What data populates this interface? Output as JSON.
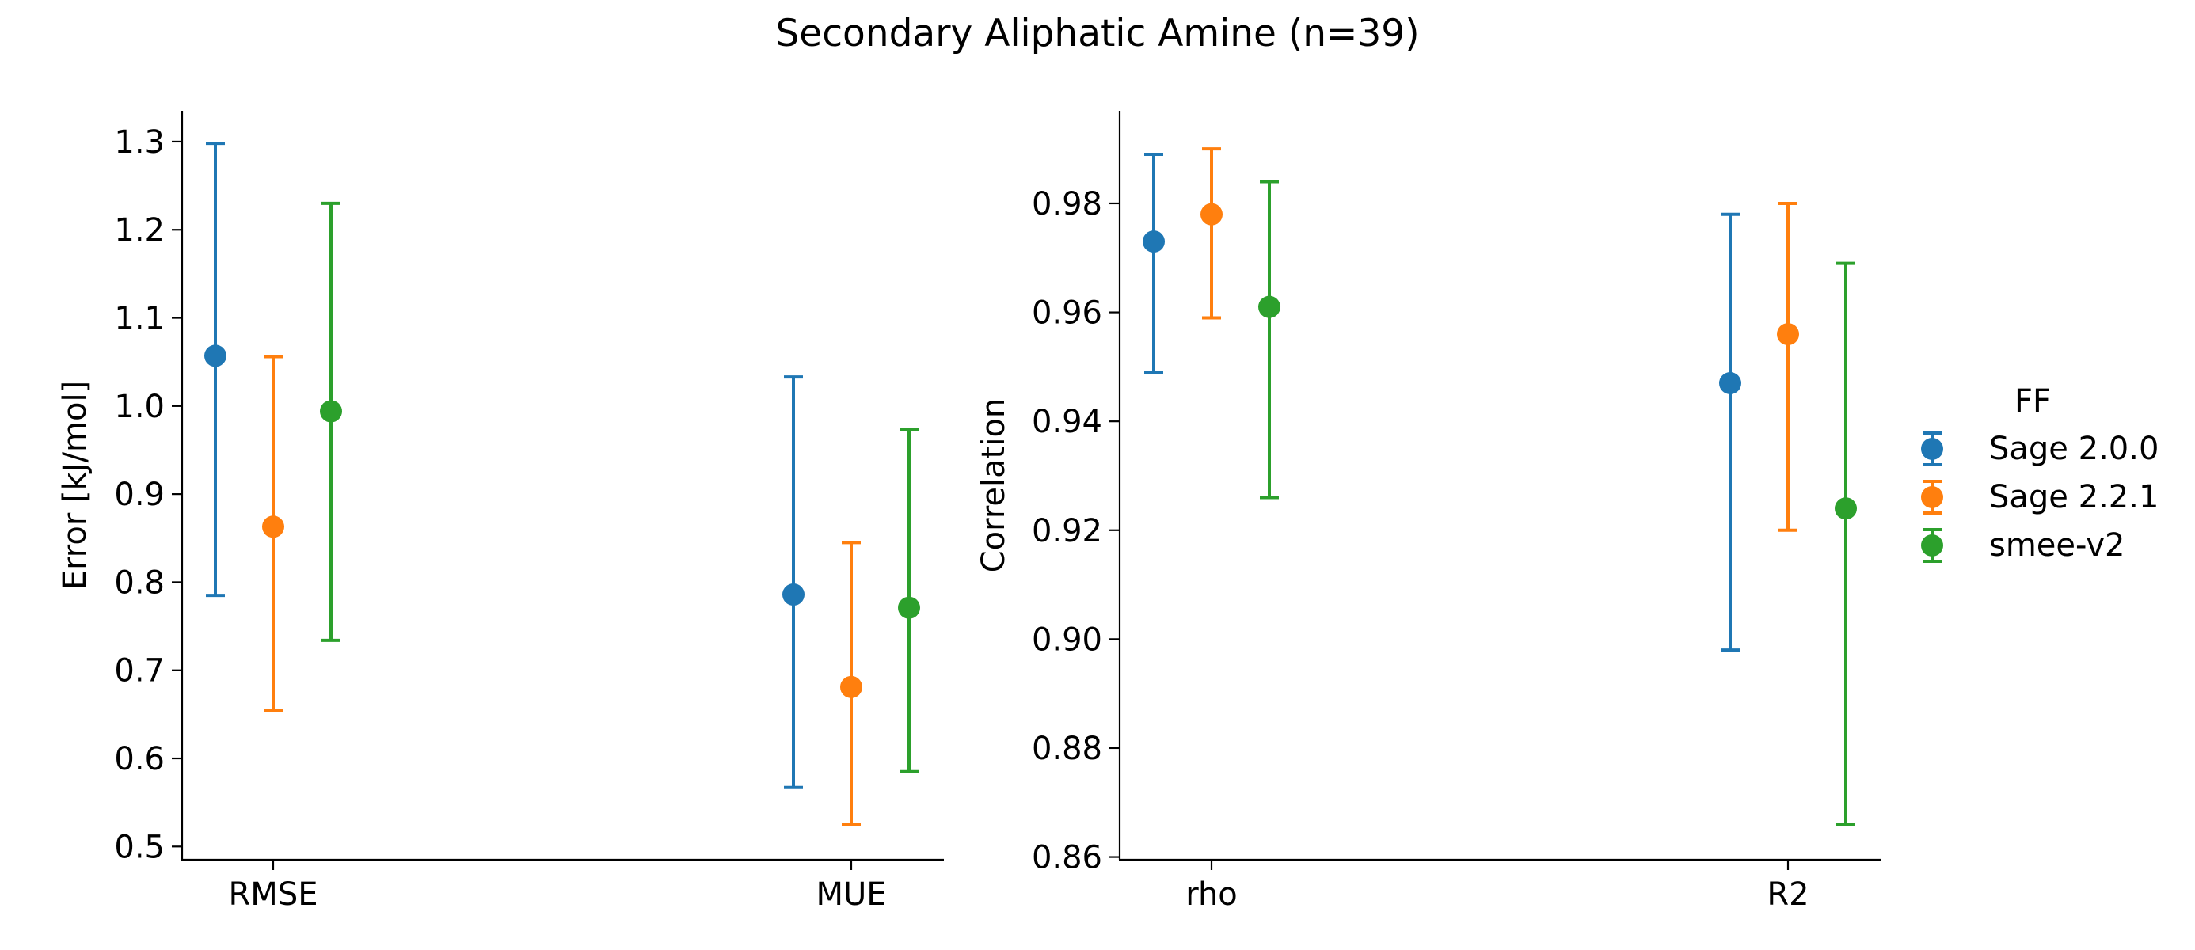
{
  "figure": {
    "title": "Secondary Aliphatic Amine (n=39)"
  },
  "legend": {
    "title": "FF",
    "placement": "right-center",
    "entries": [
      {
        "label": "Sage 2.0.0",
        "color": "#1f77b4"
      },
      {
        "label": "Sage 2.2.1",
        "color": "#ff7f0e"
      },
      {
        "label": "smee-v2",
        "color": "#2ca02c"
      }
    ]
  },
  "chart_data": [
    {
      "type": "scatter",
      "errorbars": true,
      "title": "",
      "xlabel": "",
      "ylabel": "Error [kJ/mol]",
      "categories": [
        "RMSE",
        "MUE"
      ],
      "ylim": [
        0.485,
        1.335
      ],
      "yticks": [
        0.5,
        0.6,
        0.7,
        0.8,
        0.9,
        1.0,
        1.1,
        1.2,
        1.3
      ],
      "ytick_labels": [
        "0.5",
        "0.6",
        "0.7",
        "0.8",
        "0.9",
        "1.0",
        "1.1",
        "1.2",
        "1.3"
      ],
      "grid": false,
      "series": [
        {
          "name": "Sage 2.0.0",
          "color": "#1f77b4",
          "values": [
            1.057,
            0.786
          ],
          "lower": [
            0.785,
            0.567
          ],
          "upper": [
            1.298,
            1.033
          ]
        },
        {
          "name": "Sage 2.2.1",
          "color": "#ff7f0e",
          "values": [
            0.863,
            0.681
          ],
          "lower": [
            0.654,
            0.525
          ],
          "upper": [
            1.056,
            0.845
          ]
        },
        {
          "name": "smee-v2",
          "color": "#2ca02c",
          "values": [
            0.994,
            0.771
          ],
          "lower": [
            0.734,
            0.585
          ],
          "upper": [
            1.23,
            0.973
          ]
        }
      ]
    },
    {
      "type": "scatter",
      "errorbars": true,
      "title": "",
      "xlabel": "",
      "ylabel": "Correlation",
      "categories": [
        "rho",
        "R2"
      ],
      "ylim": [
        0.8595,
        0.997
      ],
      "yticks": [
        0.86,
        0.88,
        0.9,
        0.92,
        0.94,
        0.96,
        0.98
      ],
      "ytick_labels": [
        "0.86",
        "0.88",
        "0.90",
        "0.92",
        "0.94",
        "0.96",
        "0.98"
      ],
      "grid": false,
      "series": [
        {
          "name": "Sage 2.0.0",
          "color": "#1f77b4",
          "values": [
            0.973,
            0.947
          ],
          "lower": [
            0.949,
            0.898
          ],
          "upper": [
            0.989,
            0.978
          ]
        },
        {
          "name": "Sage 2.2.1",
          "color": "#ff7f0e",
          "values": [
            0.978,
            0.956
          ],
          "lower": [
            0.959,
            0.92
          ],
          "upper": [
            0.99,
            0.98
          ]
        },
        {
          "name": "smee-v2",
          "color": "#2ca02c",
          "values": [
            0.961,
            0.924
          ],
          "lower": [
            0.926,
            0.866
          ],
          "upper": [
            0.984,
            0.969
          ]
        }
      ]
    }
  ]
}
